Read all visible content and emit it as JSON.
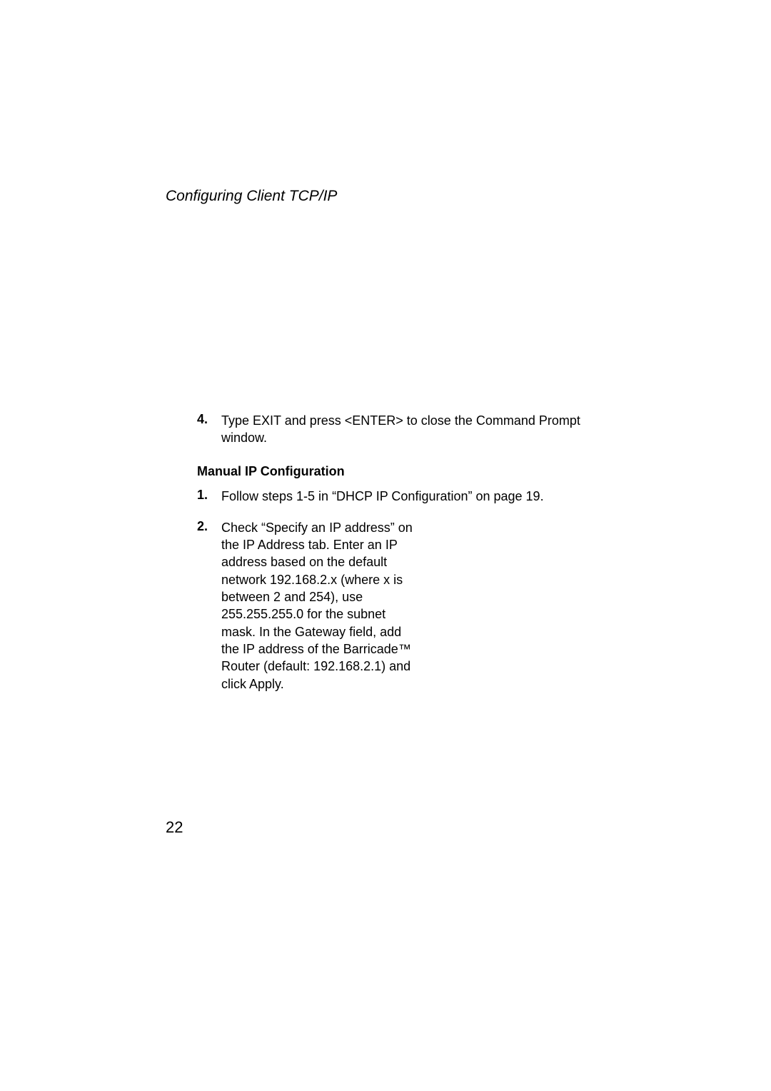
{
  "header": {
    "title": "Configuring Client TCP/IP"
  },
  "items": {
    "item4": {
      "number": "4.",
      "text": "Type EXIT and press <ENTER> to close the Command Prompt window."
    }
  },
  "section": {
    "heading": "Manual IP Configuration"
  },
  "steps": {
    "step1": {
      "number": "1.",
      "text": "Follow steps 1-5 in “DHCP IP Configuration” on page 19."
    },
    "step2": {
      "number": "2.",
      "text": "Check “Specify an IP address” on the IP Address tab. Enter an IP address based on the default network 192.168.2.x (where x is between 2 and 254), use 255.255.255.0 for the subnet mask. In the Gateway field, add the IP address of the Barricade™ Router (default: 192.168.2.1) and click Apply."
    }
  },
  "pageNumber": "22"
}
